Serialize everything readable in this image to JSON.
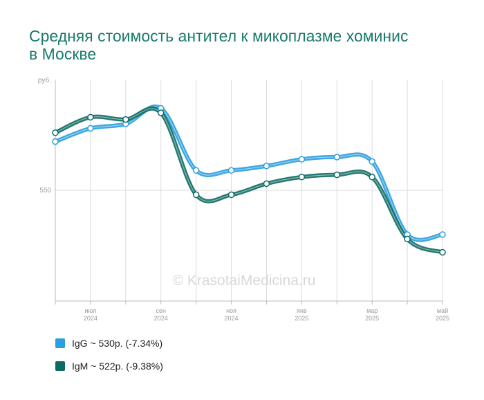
{
  "title": "Средняя стоимость антител к микоплазме хоминис в Москве",
  "watermark": "© KrasotaiMedicina.ru",
  "chart_data": {
    "type": "line",
    "ylabel": "руб.",
    "yticks": [
      550
    ],
    "ylim": [
      500,
      600
    ],
    "grid": true,
    "x": [
      0,
      1,
      2,
      3,
      4,
      5,
      6,
      7,
      8,
      9,
      10,
      11
    ],
    "xtick_labels": [
      {
        "pos": 1,
        "month": "июл",
        "year": "2024"
      },
      {
        "pos": 3,
        "month": "сен",
        "year": "2024"
      },
      {
        "pos": 5,
        "month": "ноя",
        "year": "2024"
      },
      {
        "pos": 7,
        "month": "янв",
        "year": "2025"
      },
      {
        "pos": 9,
        "month": "мар",
        "year": "2025"
      },
      {
        "pos": 11,
        "month": "май",
        "year": "2025"
      }
    ],
    "series": [
      {
        "name": "IgG",
        "color": "#2b9fe0",
        "values": [
          572,
          578,
          580,
          587,
          559,
          559,
          561,
          564,
          565,
          563,
          530,
          530
        ]
      },
      {
        "name": "IgM",
        "color": "#0e6b63",
        "values": [
          576,
          583,
          582,
          585,
          548,
          548,
          553,
          556,
          557,
          556,
          528,
          522
        ]
      }
    ],
    "legend_position": "bottom-left",
    "legend": [
      {
        "label": "IgG ~ 530р. (-7.34%)",
        "color": "#2b9fe0"
      },
      {
        "label": "IgM ~ 522р. (-9.38%)",
        "color": "#0e6b63"
      }
    ]
  }
}
